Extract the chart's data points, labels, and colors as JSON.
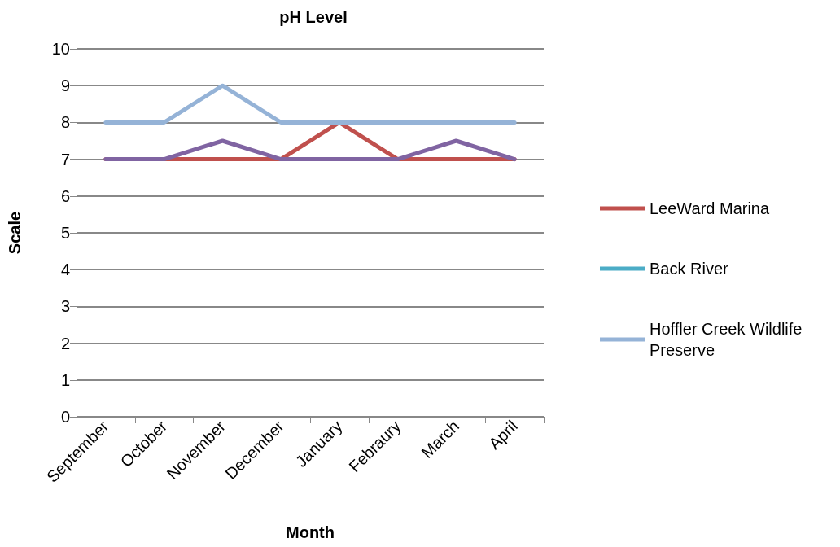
{
  "chart_data": {
    "type": "line",
    "title": "pH Level",
    "xlabel": "Month",
    "ylabel": "Scale",
    "categories": [
      "September",
      "October",
      "November",
      "December",
      "January",
      "Febraury",
      "March",
      "April"
    ],
    "series": [
      {
        "name": "LeeWard Marina",
        "color": "#c0504d",
        "values": [
          7,
          7,
          7,
          7,
          8,
          7,
          7,
          7
        ]
      },
      {
        "name": "Back River",
        "color": "#4bacc6",
        "values": [
          null,
          null,
          null,
          null,
          null,
          null,
          null,
          null
        ]
      },
      {
        "name": "Hoffler Creek Wildlife Preserve",
        "color": "#95b3d7",
        "values": [
          8,
          8,
          9,
          8,
          8,
          8,
          8,
          8
        ]
      },
      {
        "color": "#8064a2",
        "values": [
          7,
          7,
          7.5,
          7,
          7,
          7,
          7.5,
          7
        ]
      }
    ],
    "ylim": [
      0,
      10
    ],
    "yticks": [
      0,
      1,
      2,
      3,
      4,
      5,
      6,
      7,
      8,
      9,
      10
    ],
    "grid": "y",
    "legend": "right",
    "marker": "none",
    "line_style": "solid"
  }
}
